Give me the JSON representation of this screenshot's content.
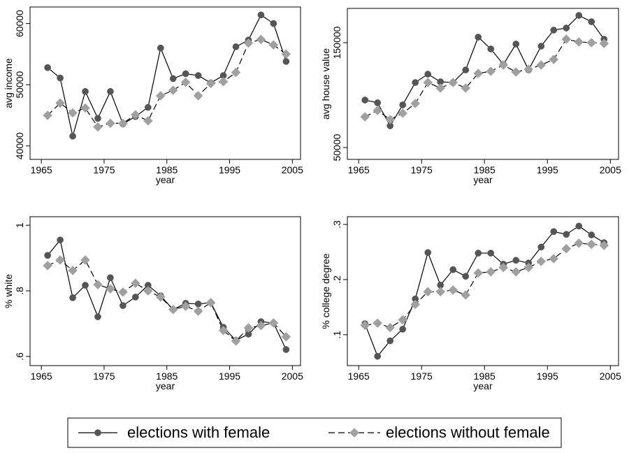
{
  "chart_data": [
    {
      "type": "line",
      "y_label": "avg income",
      "x_label": "year",
      "x": [
        1966,
        1968,
        1970,
        1972,
        1974,
        1976,
        1978,
        1980,
        1982,
        1984,
        1986,
        1988,
        1990,
        1992,
        1994,
        1996,
        1998,
        2000,
        2002,
        2004
      ],
      "xlim": [
        1963.2,
        2006.3
      ],
      "xticks": [
        1965,
        1975,
        1985,
        1995,
        2005
      ],
      "ylim": [
        37800,
        62700
      ],
      "yticks": [
        40000,
        50000,
        60000
      ],
      "series": [
        {
          "name": "elections with female",
          "color": "#555555",
          "marker": "circle",
          "line_style": "solid",
          "values": [
            52800,
            51100,
            41600,
            48900,
            44500,
            48900,
            43600,
            44800,
            46300,
            56000,
            51000,
            51800,
            51500,
            50300,
            51500,
            56200,
            57300,
            61400,
            60000,
            53800
          ]
        },
        {
          "name": "elections without female",
          "color": "#a0a0a0",
          "marker": "diamond",
          "line_style": "dashed",
          "values": [
            45000,
            47000,
            45400,
            46200,
            43100,
            43700,
            43700,
            45100,
            44100,
            48200,
            49100,
            50400,
            48200,
            50200,
            50500,
            52000,
            56800,
            57400,
            56500,
            55000
          ]
        }
      ]
    },
    {
      "type": "line",
      "y_label": "avg house value",
      "x_label": "year",
      "x": [
        1966,
        1968,
        1970,
        1972,
        1974,
        1976,
        1978,
        1980,
        1982,
        1984,
        1986,
        1988,
        1990,
        1992,
        1994,
        1996,
        1998,
        2000,
        2002,
        2004
      ],
      "xlim": [
        1963.2,
        2006.3
      ],
      "xticks": [
        1965,
        1975,
        1985,
        1995,
        2005
      ],
      "ylim": [
        38700,
        182700
      ],
      "yticks": [
        50000,
        150000
      ],
      "series": [
        {
          "name": "elections with female",
          "color": "#555555",
          "marker": "circle",
          "line_style": "solid",
          "values": [
            95300,
            92700,
            70700,
            90700,
            112000,
            120000,
            112700,
            112000,
            124000,
            155300,
            144000,
            129300,
            148700,
            124000,
            146700,
            162000,
            164000,
            176000,
            170000,
            153300
          ]
        },
        {
          "name": "elections without female",
          "color": "#a0a0a0",
          "marker": "diamond",
          "line_style": "dashed",
          "values": [
            79300,
            85300,
            76700,
            82700,
            92000,
            112000,
            106700,
            112000,
            106700,
            120700,
            122700,
            128700,
            122000,
            124700,
            128700,
            134000,
            153300,
            150700,
            150000,
            149300
          ]
        }
      ]
    },
    {
      "type": "line",
      "y_label": "% white",
      "x_label": "year",
      "x": [
        1966,
        1968,
        1970,
        1972,
        1974,
        1976,
        1978,
        1980,
        1982,
        1984,
        1986,
        1988,
        1990,
        1992,
        1994,
        1996,
        1998,
        2000,
        2002,
        2004
      ],
      "xlim": [
        1963.2,
        2006.3
      ],
      "xticks": [
        1965,
        1975,
        1985,
        1995,
        2005
      ],
      "ylim": [
        0.572,
        1.026
      ],
      "yticks": [
        {
          "value": 0.6,
          "label": ".6"
        },
        {
          "value": 0.8,
          "label": ".8"
        },
        1
      ],
      "series": [
        {
          "name": "elections with female",
          "color": "#555555",
          "marker": "circle",
          "line_style": "solid",
          "values": [
            0.908,
            0.955,
            0.779,
            0.817,
            0.721,
            0.84,
            0.755,
            0.781,
            0.817,
            0.785,
            0.743,
            0.762,
            0.76,
            0.764,
            0.689,
            0.649,
            0.668,
            0.706,
            0.702,
            0.621
          ]
        },
        {
          "name": "elections without female",
          "color": "#a0a0a0",
          "marker": "diamond",
          "line_style": "dashed",
          "values": [
            0.877,
            0.894,
            0.862,
            0.894,
            0.819,
            0.806,
            0.796,
            0.823,
            0.8,
            0.781,
            0.743,
            0.753,
            0.738,
            0.764,
            0.679,
            0.647,
            0.687,
            0.694,
            0.702,
            0.66
          ]
        }
      ]
    },
    {
      "type": "line",
      "y_label": "% college degree",
      "x_label": "year",
      "x": [
        1966,
        1968,
        1970,
        1972,
        1974,
        1976,
        1978,
        1980,
        1982,
        1984,
        1986,
        1988,
        1990,
        1992,
        1994,
        1996,
        1998,
        2000,
        2002,
        2004
      ],
      "xlim": [
        1963.2,
        2006.3
      ],
      "xticks": [
        1965,
        1975,
        1985,
        1995,
        2005
      ],
      "ylim": [
        0.044,
        0.314
      ],
      "yticks": [
        {
          "value": 0.1,
          "label": ".1"
        },
        {
          "value": 0.2,
          "label": ".2"
        },
        {
          "value": 0.3,
          "label": ".3"
        }
      ],
      "series": [
        {
          "name": "elections with female",
          "color": "#555555",
          "marker": "circle",
          "line_style": "solid",
          "values": [
            0.12,
            0.061,
            0.089,
            0.11,
            0.165,
            0.249,
            0.19,
            0.218,
            0.206,
            0.248,
            0.248,
            0.228,
            0.235,
            0.23,
            0.259,
            0.287,
            0.282,
            0.297,
            0.281,
            0.267
          ]
        },
        {
          "name": "elections without female",
          "color": "#a0a0a0",
          "marker": "diamond",
          "line_style": "dashed",
          "values": [
            0.117,
            0.121,
            0.113,
            0.127,
            0.155,
            0.178,
            0.178,
            0.181,
            0.172,
            0.212,
            0.214,
            0.222,
            0.214,
            0.222,
            0.233,
            0.238,
            0.256,
            0.266,
            0.264,
            0.262
          ]
        }
      ]
    }
  ]
}
